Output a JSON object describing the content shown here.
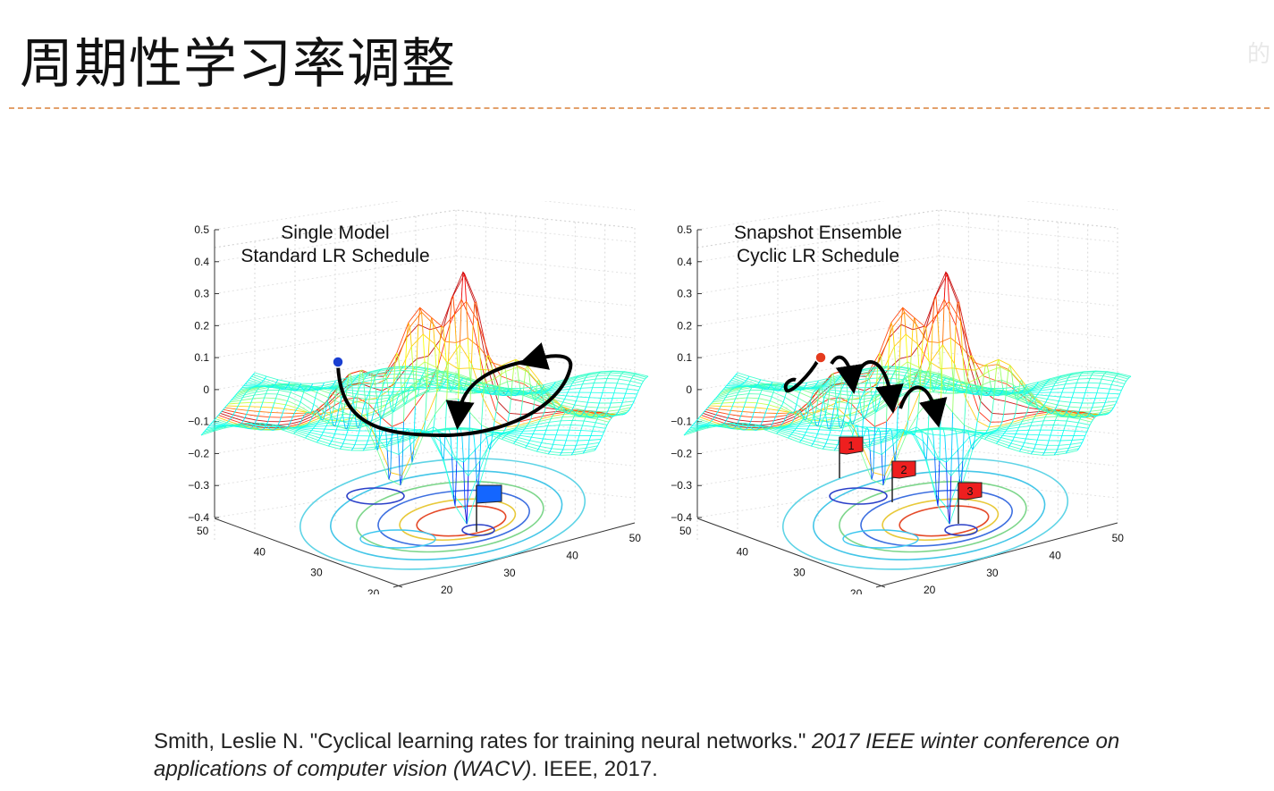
{
  "slide": {
    "title": "周期性学习率调整",
    "watermark": "的"
  },
  "colors": {
    "divider": "#e3a06a",
    "path": "#000000",
    "single_marker": "#1a3fd1",
    "ensemble_marker": "#e53b1e",
    "single_flag": "#1466ff",
    "ensemble_flag": "#ee1f1f"
  },
  "chart_data": [
    {
      "type": "surface",
      "title_line1": "Single Model",
      "title_line2": "Standard LR Schedule",
      "zticks": [
        "0.5",
        "0.4",
        "0.3",
        "0.2",
        "0.1",
        "0",
        "−0.1",
        "−0.2",
        "−0.3",
        "−0.4"
      ],
      "left_axis_ticks": [
        "50",
        "40",
        "30",
        "20"
      ],
      "right_axis_ticks": [
        "20",
        "30",
        "40",
        "50"
      ],
      "zlim": [
        -0.4,
        0.5
      ],
      "markers": [
        {
          "kind": "start-dot",
          "color": "#1a3fd1"
        }
      ],
      "flags": [
        {
          "label": "",
          "color": "#1466ff"
        }
      ]
    },
    {
      "type": "surface",
      "title_line1": "Snapshot Ensemble",
      "title_line2": "Cyclic LR Schedule",
      "zticks": [
        "0.5",
        "0.4",
        "0.3",
        "0.2",
        "0.1",
        "0",
        "−0.1",
        "−0.2",
        "−0.3",
        "−0.4"
      ],
      "left_axis_ticks": [
        "50",
        "40",
        "30",
        "20"
      ],
      "right_axis_ticks": [
        "20",
        "30",
        "40",
        "50"
      ],
      "zlim": [
        -0.4,
        0.5
      ],
      "markers": [
        {
          "kind": "start-dot",
          "color": "#e53b1e"
        }
      ],
      "flags": [
        {
          "label": "1",
          "color": "#ee1f1f"
        },
        {
          "label": "2",
          "color": "#ee1f1f"
        },
        {
          "label": "3",
          "color": "#ee1f1f"
        }
      ]
    }
  ],
  "citation": {
    "plain": "Smith, Leslie N. \"Cyclical learning rates for training neural networks.\" ",
    "venue": "2017 IEEE winter conference on applications of computer vision (WACV)",
    "tail": ". IEEE, 2017."
  }
}
